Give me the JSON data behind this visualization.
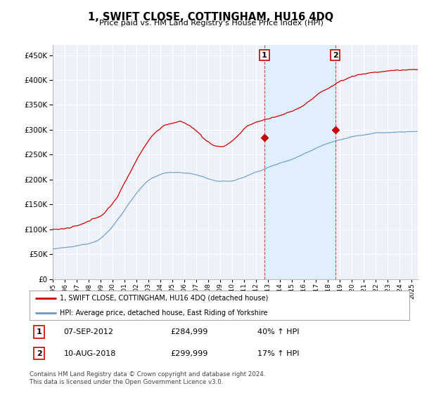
{
  "title": "1, SWIFT CLOSE, COTTINGHAM, HU16 4DQ",
  "subtitle": "Price paid vs. HM Land Registry's House Price Index (HPI)",
  "ylim": [
    0,
    470000
  ],
  "yticks": [
    0,
    50000,
    100000,
    150000,
    200000,
    250000,
    300000,
    350000,
    400000,
    450000
  ],
  "xlim_start": 1995.0,
  "xlim_end": 2025.5,
  "sale1_date_label": "07-SEP-2012",
  "sale1_price": 284999,
  "sale1_price_label": "£284,999",
  "sale1_hpi_label": "40% ↑ HPI",
  "sale1_x": 2012.69,
  "sale2_date_label": "10-AUG-2018",
  "sale2_price": 299999,
  "sale2_price_label": "£299,999",
  "sale2_hpi_label": "17% ↑ HPI",
  "sale2_x": 2018.61,
  "legend_label_red": "1, SWIFT CLOSE, COTTINGHAM, HU16 4DQ (detached house)",
  "legend_label_blue": "HPI: Average price, detached house, East Riding of Yorkshire",
  "footer": "Contains HM Land Registry data © Crown copyright and database right 2024.\nThis data is licensed under the Open Government Licence v3.0.",
  "red_color": "#cc0000",
  "blue_color": "#6699cc",
  "shade_color": "#ddeeff",
  "background_color": "#ffffff",
  "plot_bg_color": "#eef2f8"
}
